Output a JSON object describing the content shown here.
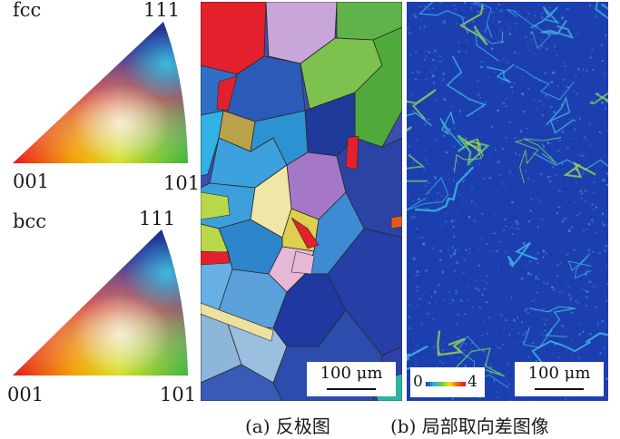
{
  "legends": {
    "fcc": {
      "name": "fcc",
      "corner_top": "111",
      "corner_left": "001",
      "corner_right": "101"
    },
    "bcc": {
      "name": "bcc",
      "corner_top": "111",
      "corner_left": "001",
      "corner_right": "101"
    }
  },
  "panels": {
    "ipf": {
      "scale_label": "100 μm"
    },
    "kam": {
      "scale_label": "100 μm",
      "colorbar_min": "0",
      "colorbar_max": "4"
    }
  },
  "caption": {
    "a": "(a) 反极图",
    "b": "(b) 局部取向差图像"
  },
  "colors": {
    "kam_background": "#1c3fb0",
    "ipf_red": "#e0202a",
    "ipf_green": "#4cb038",
    "ipf_blue": "#23358f"
  }
}
